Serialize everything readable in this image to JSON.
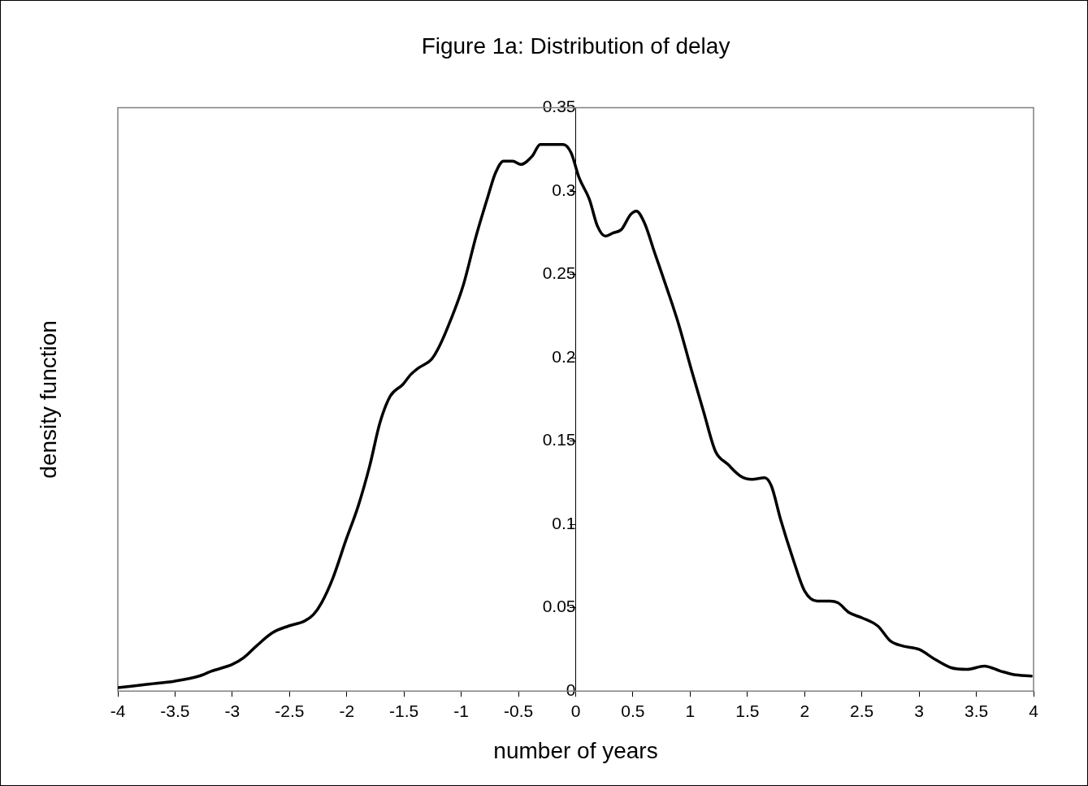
{
  "chart_data": {
    "type": "line",
    "title": "Figure 1a: Distribution of delay",
    "xlabel": "number of years",
    "ylabel": "density function",
    "xlim": [
      -4,
      4
    ],
    "xticks": [
      -4,
      -3.5,
      -3,
      -2.5,
      -2,
      -1.5,
      -1,
      -0.5,
      0,
      0.5,
      1,
      1.5,
      2,
      2.5,
      3,
      3.5,
      4
    ],
    "ylim": [
      0,
      0.35
    ],
    "yticks": [
      0,
      0.05,
      0.1,
      0.15,
      0.2,
      0.25,
      0.3,
      0.35
    ],
    "grid": false,
    "legend": false,
    "marker": "none",
    "line_style": "solid",
    "series": [
      {
        "color": "#000000",
        "x": [
          -4,
          -3.75,
          -3.5,
          -3.29,
          -3.18,
          -3.0,
          -2.9,
          -2.79,
          -2.65,
          -2.51,
          -2.37,
          -2.29,
          -2.22,
          -2.12,
          -2.01,
          -1.9,
          -1.8,
          -1.71,
          -1.62,
          -1.51,
          -1.44,
          -1.37,
          -1.26,
          -1.19,
          -1.09,
          -0.98,
          -0.87,
          -0.77,
          -0.7,
          -0.63,
          -0.55,
          -0.48,
          -0.38,
          -0.31,
          -0.2,
          -0.11,
          -0.04,
          0.03,
          0.12,
          0.19,
          0.26,
          0.33,
          0.4,
          0.48,
          0.53,
          0.6,
          0.69,
          0.8,
          0.9,
          1.01,
          1.12,
          1.22,
          1.33,
          1.44,
          1.54,
          1.65,
          1.71,
          1.79,
          1.9,
          2.0,
          2.11,
          2.22,
          2.29,
          2.39,
          2.5,
          2.64,
          2.75,
          2.86,
          3.0,
          3.14,
          3.28,
          3.42,
          3.57,
          3.71,
          3.82,
          3.98
        ],
        "values": [
          0.002,
          0.004,
          0.006,
          0.009,
          0.012,
          0.016,
          0.02,
          0.027,
          0.035,
          0.039,
          0.042,
          0.046,
          0.053,
          0.068,
          0.09,
          0.111,
          0.135,
          0.161,
          0.177,
          0.184,
          0.19,
          0.194,
          0.199,
          0.207,
          0.223,
          0.244,
          0.273,
          0.296,
          0.311,
          0.318,
          0.318,
          0.316,
          0.321,
          0.328,
          0.328,
          0.328,
          0.323,
          0.308,
          0.295,
          0.279,
          0.273,
          0.275,
          0.277,
          0.286,
          0.288,
          0.281,
          0.263,
          0.241,
          0.22,
          0.193,
          0.167,
          0.144,
          0.136,
          0.129,
          0.127,
          0.128,
          0.123,
          0.103,
          0.079,
          0.06,
          0.054,
          0.054,
          0.053,
          0.047,
          0.044,
          0.039,
          0.03,
          0.027,
          0.025,
          0.019,
          0.014,
          0.013,
          0.015,
          0.012,
          0.01,
          0.009
        ]
      }
    ]
  }
}
